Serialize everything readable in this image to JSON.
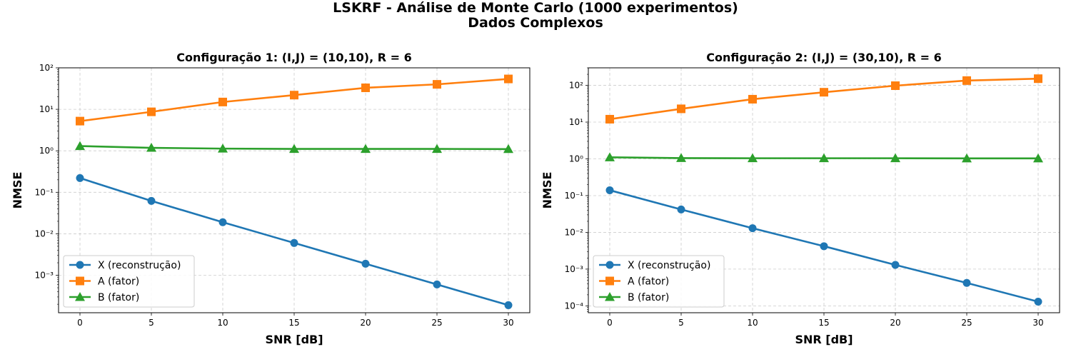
{
  "figure": {
    "title_line1": "LSKRF - Análise de Monte Carlo (1000 experimentos)",
    "title_line2": "Dados Complexos"
  },
  "colors": {
    "X": "#1f77b4",
    "A": "#ff7f0e",
    "B": "#2ca02c",
    "grid": "#cccccc"
  },
  "chart_data": [
    {
      "type": "line",
      "title": "Configuração 1: (I,J) = (10,10), R = 6",
      "xlabel": "SNR [dB]",
      "ylabel": "NMSE",
      "yscale": "log",
      "xlim": [
        -1.5,
        31.5
      ],
      "ylim": [
        0.000125,
        100
      ],
      "xticks": [
        0,
        5,
        10,
        15,
        20,
        25,
        30
      ],
      "yticks_exp": [
        -3,
        -2,
        -1,
        0,
        1,
        2
      ],
      "grid": true,
      "legend_position": "lower-left",
      "x": [
        0,
        5,
        10,
        15,
        20,
        25,
        30
      ],
      "series": [
        {
          "name": "X (reconstrução)",
          "marker": "circle",
          "color": "#1f77b4",
          "values": [
            0.22,
            0.062,
            0.019,
            0.006,
            0.0019,
            0.0006,
            0.00019
          ]
        },
        {
          "name": "A (fator)",
          "marker": "square",
          "color": "#ff7f0e",
          "values": [
            5.2,
            8.7,
            15,
            22,
            33,
            40,
            54
          ]
        },
        {
          "name": "B (fator)",
          "marker": "triangle",
          "color": "#2ca02c",
          "values": [
            1.3,
            1.18,
            1.13,
            1.11,
            1.11,
            1.11,
            1.1
          ]
        }
      ]
    },
    {
      "type": "line",
      "title": "Configuração 2: (I,J) = (30,10), R = 6",
      "xlabel": "SNR [dB]",
      "ylabel": "NMSE",
      "yscale": "log",
      "xlim": [
        -1.5,
        31.5
      ],
      "ylim": [
        6.5e-05,
        300
      ],
      "xticks": [
        0,
        5,
        10,
        15,
        20,
        25,
        30
      ],
      "yticks_exp": [
        -4,
        -3,
        -2,
        -1,
        0,
        1,
        2
      ],
      "grid": true,
      "legend_position": "lower-left",
      "x": [
        0,
        5,
        10,
        15,
        20,
        25,
        30
      ],
      "series": [
        {
          "name": "X (reconstrução)",
          "marker": "circle",
          "color": "#1f77b4",
          "values": [
            0.14,
            0.042,
            0.013,
            0.0042,
            0.0013,
            0.00042,
            0.00013
          ]
        },
        {
          "name": "A (fator)",
          "marker": "square",
          "color": "#ff7f0e",
          "values": [
            12,
            23,
            42,
            65,
            98,
            135,
            152
          ]
        },
        {
          "name": "B (fator)",
          "marker": "triangle",
          "color": "#2ca02c",
          "values": [
            1.1,
            1.05,
            1.04,
            1.04,
            1.04,
            1.03,
            1.03
          ]
        }
      ]
    }
  ]
}
